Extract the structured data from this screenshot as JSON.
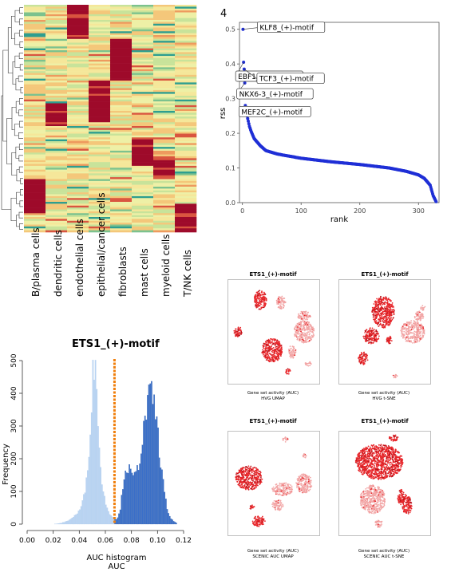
{
  "heatmap": {
    "columns": [
      "B/plasma cells",
      "dendritic cells",
      "endothelial cells",
      "epithelial/cancer cells",
      "fibroblasts",
      "mast cells",
      "myeloid cells",
      "T/NK cells"
    ]
  },
  "rss_panel": {
    "panel_label": "4",
    "xlabel": "rank",
    "ylabel": "rss",
    "xticks": [
      "0",
      "100",
      "200",
      "300"
    ],
    "yticks": [
      "0.0",
      "0.1",
      "0.2",
      "0.3",
      "0.4",
      "0.5"
    ],
    "labels": [
      "KLF8_(+)-motif",
      "EBF1_(+)-motif",
      "TCF3_(+)-motif",
      "NKX6-3_(+)-motif",
      "MEF2C_(+)-motif"
    ]
  },
  "chart_data": [
    {
      "type": "scatter",
      "xlabel": "rank",
      "ylabel": "rss",
      "xlim": [
        -5,
        335
      ],
      "ylim": [
        0,
        0.52
      ],
      "x": [
        1,
        2,
        3,
        4,
        5,
        6,
        7,
        8,
        10,
        12,
        15,
        20,
        30,
        40,
        60,
        100,
        150,
        200,
        250,
        280,
        300,
        310,
        320,
        325,
        330
      ],
      "y": [
        0.5,
        0.405,
        0.385,
        0.345,
        0.28,
        0.272,
        0.265,
        0.25,
        0.235,
        0.22,
        0.205,
        0.185,
        0.165,
        0.15,
        0.14,
        0.128,
        0.118,
        0.11,
        0.1,
        0.09,
        0.08,
        0.07,
        0.05,
        0.02,
        0.003
      ],
      "annotations": [
        {
          "label": "KLF8_(+)-motif",
          "rank": 1,
          "rss": 0.5
        },
        {
          "label": "EBF1_(+)-motif",
          "rank": 2,
          "rss": 0.405
        },
        {
          "label": "TCF3_(+)-motif",
          "rank": 3,
          "rss": 0.385
        },
        {
          "label": "NKX6-3_(+)-motif",
          "rank": 4,
          "rss": 0.345
        },
        {
          "label": "MEF2C_(+)-motif",
          "rank": 5,
          "rss": 0.28
        }
      ]
    },
    {
      "type": "bar",
      "title": "ETS1_(+)-motif",
      "xlabel": "AUC histogram\nAUC",
      "ylabel": "Frequency",
      "xlim": [
        0,
        0.12
      ],
      "ylim": [
        0,
        500
      ],
      "xticks": [
        "0.00",
        "0.02",
        "0.04",
        "0.06",
        "0.08",
        "0.10",
        "0.12"
      ],
      "yticks": [
        "0",
        "100",
        "200",
        "300",
        "400",
        "500"
      ],
      "threshold": 0.067,
      "bin_width": 0.001,
      "x": [
        0.025,
        0.03,
        0.035,
        0.04,
        0.042,
        0.044,
        0.046,
        0.048,
        0.05,
        0.051,
        0.052,
        0.053,
        0.054,
        0.055,
        0.056,
        0.058,
        0.06,
        0.062,
        0.064,
        0.066,
        0.068,
        0.07,
        0.072,
        0.074,
        0.076,
        0.078,
        0.08,
        0.082,
        0.084,
        0.086,
        0.088,
        0.09,
        0.092,
        0.094,
        0.096,
        0.098,
        0.1,
        0.102,
        0.104,
        0.106,
        0.108,
        0.11,
        0.112,
        0.115
      ],
      "values": [
        2,
        8,
        20,
        40,
        60,
        90,
        150,
        260,
        420,
        490,
        500,
        450,
        380,
        290,
        190,
        110,
        70,
        45,
        30,
        20,
        15,
        20,
        60,
        140,
        175,
        170,
        150,
        140,
        160,
        190,
        250,
        300,
        360,
        390,
        400,
        360,
        290,
        210,
        140,
        80,
        40,
        20,
        10,
        2
      ]
    }
  ],
  "umap_panels": [
    {
      "title": "ETS1_(+)-motif",
      "caption1": "Gene set activity (AUC)",
      "caption2": "HVG UMAP"
    },
    {
      "title": "ETS1_(+)-motif",
      "caption1": "Gene set activity (AUC)",
      "caption2": "HVG t-SNE"
    },
    {
      "title": "ETS1_(+)-motif",
      "caption1": "Gene set activity (AUC)",
      "caption2": "SCENIC AUC UMAP"
    },
    {
      "title": "ETS1_(+)-motif",
      "caption1": "Gene set activity (AUC)",
      "caption2": "SCENIC AUC t-SNE"
    }
  ],
  "colors": {
    "heat_high": "#9e0a2a",
    "heat_mid": "#f2f2a0",
    "heat_low": "#2e9e8f",
    "rss_points": "#1f2fd6",
    "hist_low": "#b9d4f2",
    "hist_high": "#3a6fc9",
    "threshold": "#f07f0c",
    "umap_high": "#e8262a",
    "umap_low": "#f2a6a6"
  }
}
